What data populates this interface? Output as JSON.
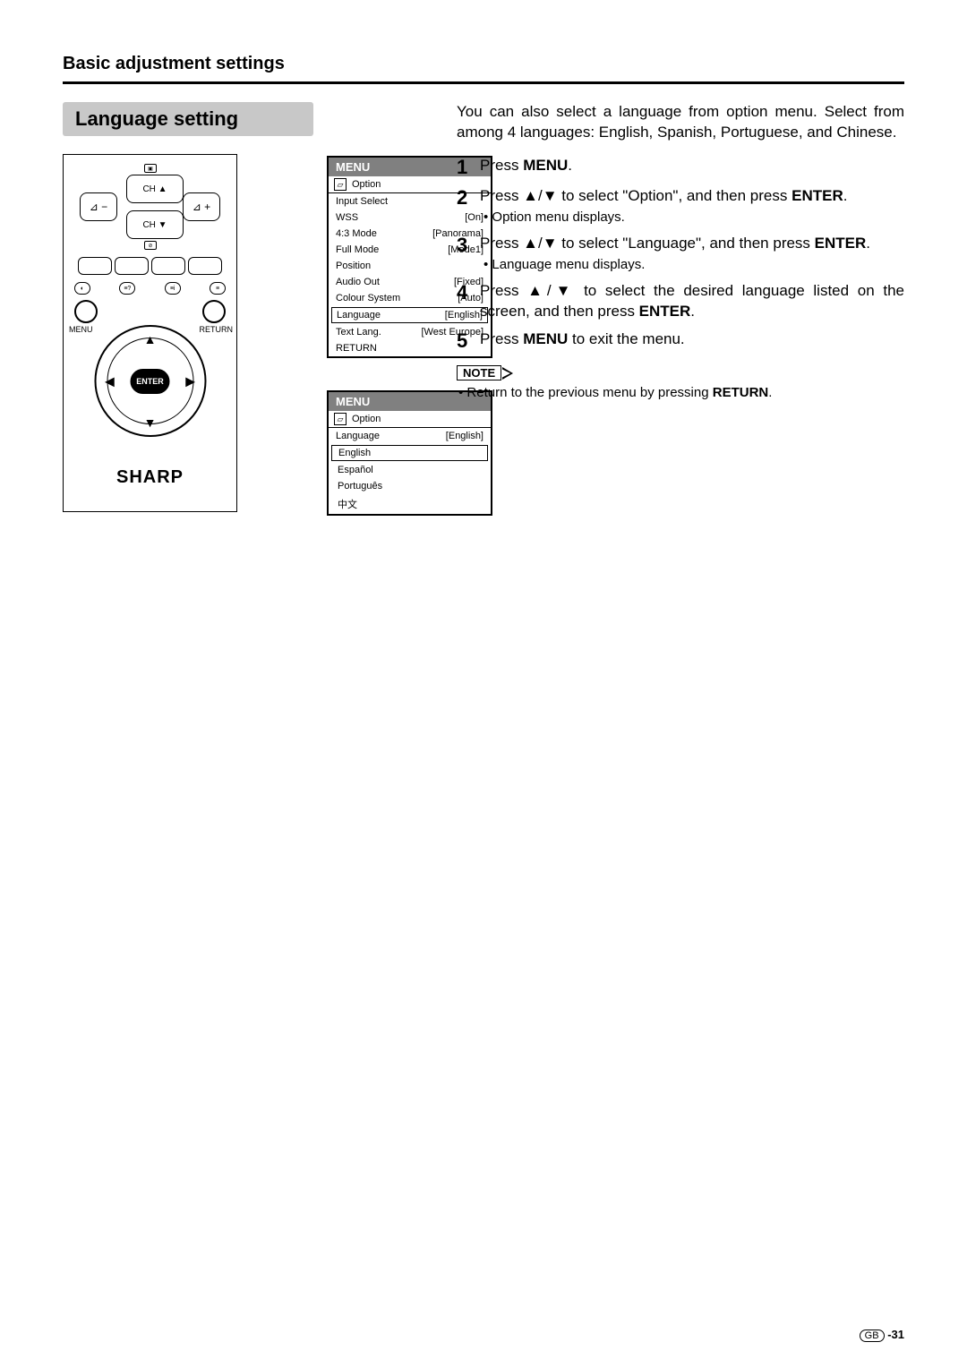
{
  "section_title": "Basic adjustment settings",
  "banner": "Language setting",
  "remote": {
    "ch_up": "CH ▲",
    "ch_dn": "CH ▼",
    "vol_minus": "⊿ −",
    "vol_plus": "⊿ +",
    "menu": "MENU",
    "return": "RETURN",
    "enter": "ENTER",
    "brand": "SHARP"
  },
  "menu1": {
    "header": "MENU",
    "option_label": "Option",
    "rows": [
      {
        "label": "Input Select",
        "value": ""
      },
      {
        "label": "WSS",
        "value": "[On]"
      },
      {
        "label": "4:3 Mode",
        "value": "[Panorama]"
      },
      {
        "label": "Full Mode",
        "value": "[Mode1]"
      },
      {
        "label": "Position",
        "value": ""
      },
      {
        "label": "Audio Out",
        "value": "[Fixed]"
      },
      {
        "label": "Colour System",
        "value": "[Auto]"
      },
      {
        "label": "Language",
        "value": "[English]",
        "boxed": true
      },
      {
        "label": "Text Lang.",
        "value": "[West Europe]"
      },
      {
        "label": "RETURN",
        "value": ""
      }
    ]
  },
  "menu2": {
    "header": "MENU",
    "option_label": "Option",
    "lang_row": {
      "label": "Language",
      "value": "[English]"
    },
    "items": [
      "English",
      "Español",
      "Português",
      "中文"
    ]
  },
  "intro": "You can also select a language from option menu. Select from among 4 languages: English, Spanish, Portuguese, and Chinese.",
  "steps": {
    "s1": {
      "n": "1",
      "body_pre": "Press ",
      "body_bold": "MENU",
      "body_post": "."
    },
    "s2": {
      "n": "2",
      "body": "Press ▲/▼ to select \"Option\", and then press ",
      "bold": "ENTER",
      "post": ".",
      "sub": "• Option menu displays."
    },
    "s3": {
      "n": "3",
      "body": "Press ▲/▼ to select \"Language\", and then press ",
      "bold": "ENTER",
      "post": ".",
      "sub": "• Language menu displays."
    },
    "s4": {
      "n": "4",
      "body": "Press ▲/▼ to select the desired language listed on the screen, and then press ",
      "bold": "ENTER",
      "post": "."
    },
    "s5": {
      "n": "5",
      "body_pre": "Press ",
      "body_bold": "MENU",
      "body_post": " to exit the menu."
    }
  },
  "note": {
    "label": "NOTE",
    "text": "• Return to the previous menu by pressing ",
    "bold": "RETURN",
    "post": "."
  },
  "footer": {
    "gb": "GB",
    "page": "-31"
  }
}
